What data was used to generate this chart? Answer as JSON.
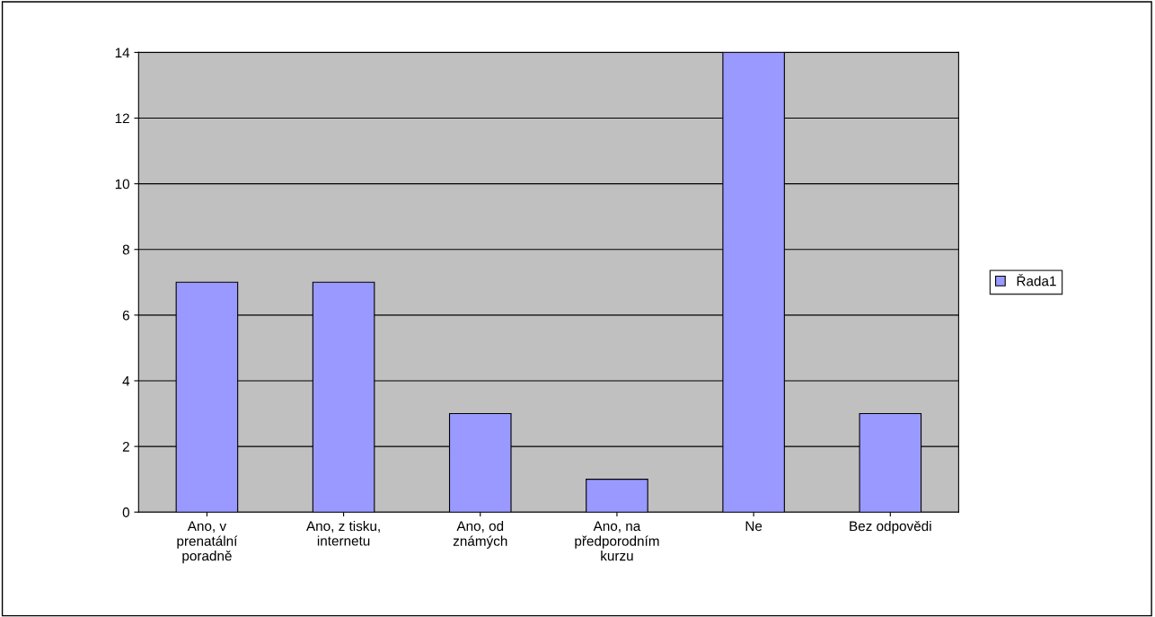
{
  "chart_data": {
    "type": "bar",
    "categories": [
      "Ano, v\nprenatální\nporadně",
      "Ano, z tisku,\ninternetu",
      "Ano, od\nznámých",
      "Ano, na\npředporodním\nkurzu",
      "Ne",
      "Bez odpovědi"
    ],
    "series": [
      {
        "name": "Řada1",
        "color": "#9999ff",
        "values": [
          7,
          7,
          3,
          1,
          14,
          3
        ]
      }
    ],
    "ylim": [
      0,
      14
    ],
    "yticks": [
      0,
      2,
      4,
      6,
      8,
      10,
      12,
      14
    ],
    "grid": "y",
    "legend": "right"
  }
}
